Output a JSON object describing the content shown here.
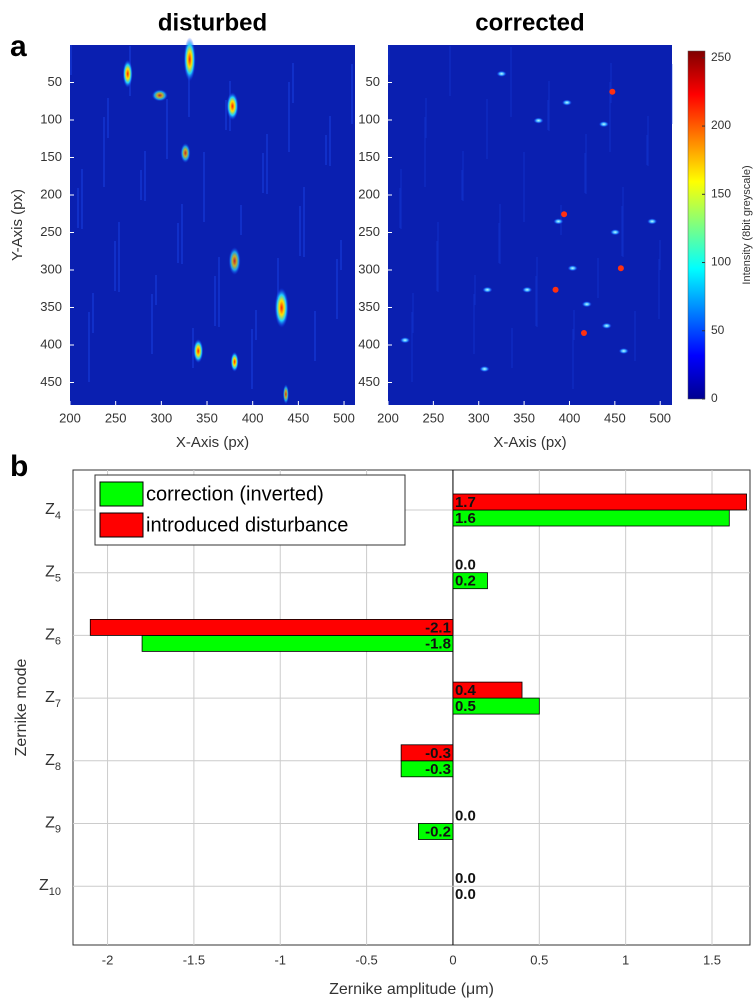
{
  "panel_labels": [
    "a",
    "b"
  ],
  "chart_data": [
    {
      "type": "heatmap",
      "title": "disturbed",
      "xlabel": "X-Axis (px)",
      "ylabel": "Y-Axis (px)",
      "xlim": [
        200,
        512
      ],
      "ylim": [
        0,
        480
      ],
      "xticks": [
        200,
        250,
        300,
        350,
        400,
        450,
        500
      ],
      "yticks": [
        50,
        100,
        150,
        200,
        250,
        300,
        350,
        400,
        450
      ]
    },
    {
      "type": "heatmap",
      "title": "corrected",
      "xlabel": "X-Axis (px)",
      "xlim": [
        200,
        513
      ],
      "ylim": [
        0,
        480
      ],
      "xticks": [
        200,
        250,
        300,
        350,
        400,
        450,
        500
      ],
      "yticks": [
        50,
        100,
        150,
        200,
        250,
        300,
        350,
        400,
        450
      ]
    },
    {
      "type": "colorbar",
      "label": "Intensity (8bit greyscale)",
      "ylim": [
        0,
        255
      ],
      "yticks": [
        0,
        50,
        100,
        150,
        200,
        250
      ]
    },
    {
      "type": "barh",
      "xlabel": "Zernike amplitude (μm)",
      "ylabel": "Zernike mode",
      "categories": [
        {
          "letter": "Z",
          "sub": "4"
        },
        {
          "letter": "Z",
          "sub": "5"
        },
        {
          "letter": "Z",
          "sub": "6"
        },
        {
          "letter": "Z",
          "sub": "7"
        },
        {
          "letter": "Z",
          "sub": "8"
        },
        {
          "letter": "Z",
          "sub": "9"
        },
        {
          "letter": "Z",
          "sub": "10"
        }
      ],
      "series": [
        {
          "name": "correction (inverted)",
          "color": "#00ff00",
          "values": [
            1.6,
            0.2,
            -1.8,
            0.5,
            -0.3,
            -0.2,
            0.0
          ],
          "value_labels": [
            "1.6",
            "0.2",
            "-1.8",
            "0.5",
            "-0.3",
            "-0.2",
            "0.0"
          ]
        },
        {
          "name": "introduced disturbance",
          "color": "#ff0000",
          "values": [
            1.7,
            0.0,
            -2.1,
            0.4,
            -0.3,
            0.0,
            0.0
          ],
          "value_labels": [
            "1.7",
            "0.0",
            "-2.1",
            "0.4",
            "-0.3",
            "0.0",
            "0.0"
          ]
        }
      ],
      "xlim": [
        -2.2,
        1.72
      ],
      "xticks": [
        -2,
        -1.5,
        -1,
        -0.5,
        0,
        0.5,
        1,
        1.5
      ],
      "grid": true,
      "legend": "upper-left"
    }
  ]
}
